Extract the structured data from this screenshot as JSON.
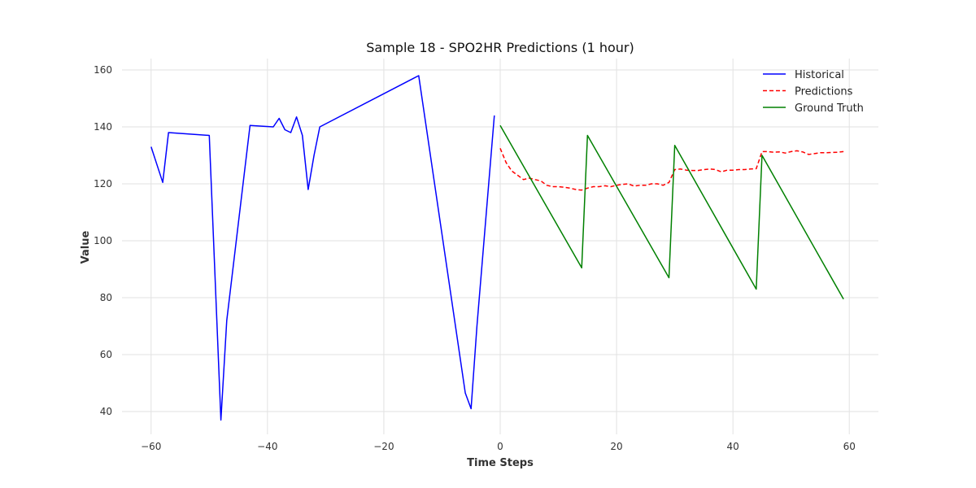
{
  "chart_data": {
    "type": "line",
    "title": "Sample 18 - SPO2HR Predictions (1 hour)",
    "xlabel": "Time Steps",
    "ylabel": "Value",
    "xlim": [
      -65,
      65
    ],
    "ylim": [
      32,
      164
    ],
    "xticks": [
      -60,
      -40,
      -20,
      0,
      20,
      40,
      60
    ],
    "xtick_labels": [
      "−60",
      "−40",
      "−20",
      "0",
      "20",
      "40",
      "60"
    ],
    "yticks": [
      40,
      60,
      80,
      100,
      120,
      140,
      160
    ],
    "grid": true,
    "legend_position": "top-right",
    "series": [
      {
        "name": "Historical",
        "color": "#0000ff",
        "style": "solid",
        "x": [
          -60,
          -58,
          -57,
          -50,
          -48,
          -47,
          -43,
          -39,
          -38,
          -37,
          -36,
          -35,
          -34,
          -33,
          -32,
          -31,
          -14,
          -6,
          -5,
          -4,
          -1
        ],
        "y": [
          133,
          120.5,
          138,
          137,
          37,
          72,
          140.5,
          140,
          143,
          139,
          138,
          143.5,
          137,
          118,
          130,
          140,
          158,
          46.5,
          41,
          70,
          144
        ]
      },
      {
        "name": "Predictions",
        "color": "#ff0000",
        "style": "dashed",
        "x": [
          0,
          1,
          2,
          3,
          4,
          5,
          6,
          7,
          8,
          9,
          10,
          11,
          12,
          13,
          14,
          15,
          16,
          17,
          18,
          19,
          20,
          21,
          22,
          23,
          24,
          25,
          26,
          27,
          28,
          29,
          30,
          31,
          32,
          33,
          34,
          35,
          36,
          37,
          38,
          39,
          40,
          41,
          42,
          43,
          44,
          45,
          46,
          47,
          48,
          49,
          50,
          51,
          52,
          53,
          54,
          55,
          56,
          57,
          58,
          59
        ],
        "y": [
          132.5,
          127.5,
          124.5,
          123,
          121.5,
          122,
          121.5,
          121,
          119.5,
          119,
          119,
          118.8,
          118.5,
          118,
          117.8,
          118.5,
          119,
          119,
          119.3,
          119,
          119.5,
          119.8,
          120,
          119.2,
          119.5,
          119.5,
          120,
          120,
          119.5,
          120.5,
          125,
          125.2,
          124.8,
          124.7,
          124.7,
          125,
          125.2,
          125,
          124.2,
          124.8,
          124.8,
          125,
          125,
          125.2,
          125.3,
          131.3,
          131.3,
          131.1,
          131.2,
          130.8,
          131.3,
          131.6,
          131.2,
          130.3,
          130.6,
          130.9,
          130.9,
          131,
          131.1,
          131.3
        ]
      },
      {
        "name": "Ground Truth",
        "color": "#008000",
        "style": "solid",
        "x": [
          0,
          14,
          15,
          29,
          30,
          44,
          45,
          59
        ],
        "y": [
          140.5,
          90.5,
          137,
          87,
          133.5,
          83,
          130,
          79.5
        ]
      }
    ]
  }
}
